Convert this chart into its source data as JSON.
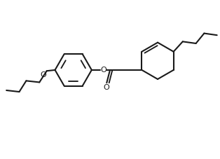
{
  "bg_color": "#ffffff",
  "line_color": "#1a1a1a",
  "lw": 1.5,
  "figsize": [
    3.14,
    2.28
  ],
  "dpi": 100,
  "xlim": [
    -1,
    11
  ],
  "ylim": [
    -1.5,
    6.5
  ]
}
